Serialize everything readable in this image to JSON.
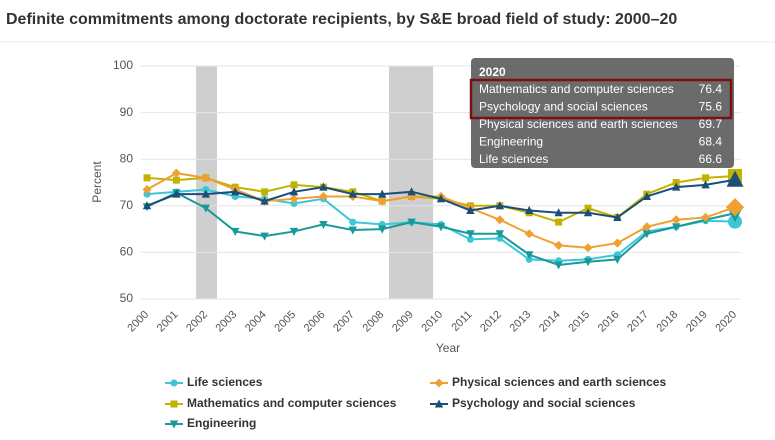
{
  "chart_data": {
    "type": "line",
    "title": "Definite commitments among doctorate recipients, by S&E broad field of study: 2000–20",
    "x": [
      "2000",
      "2001",
      "2002",
      "2003",
      "2004",
      "2005",
      "2006",
      "2007",
      "2008",
      "2009",
      "2010",
      "2011",
      "2012",
      "2013",
      "2014",
      "2015",
      "2016",
      "2017",
      "2018",
      "2019",
      "2020"
    ],
    "xlabel": "Year",
    "ylabel": "Percent",
    "ylim": [
      50,
      100
    ],
    "yticks": [
      50,
      60,
      70,
      80,
      90,
      100
    ],
    "grid": true,
    "shaded_periods": [
      [
        2001.67,
        2002.38
      ],
      [
        2008.23,
        2009.73
      ]
    ],
    "series": [
      {
        "name": "Life sciences",
        "color": "#3cc6d6",
        "marker": "circle",
        "values": [
          72.5,
          73,
          73.5,
          72,
          71.5,
          70.5,
          71.5,
          66.5,
          66,
          66.5,
          66,
          62.8,
          63,
          58.5,
          58.2,
          58.5,
          59.5,
          64.5,
          65.5,
          66.8,
          66.6
        ]
      },
      {
        "name": "Mathematics and computer sciences",
        "color": "#c4b200",
        "marker": "square",
        "values": [
          76,
          75.5,
          76,
          74,
          73,
          74.5,
          74,
          73,
          71,
          72,
          71.5,
          70,
          70,
          68.5,
          66.5,
          69.5,
          67.5,
          72.5,
          75,
          76,
          76.4
        ]
      },
      {
        "name": "Engineering",
        "color": "#189a9a",
        "marker": "triangle-down",
        "values": [
          69.8,
          72.8,
          69.5,
          64.5,
          63.5,
          64.5,
          66,
          64.8,
          65,
          66.5,
          65.5,
          64,
          64,
          59.5,
          57.3,
          58,
          58.5,
          64,
          65.5,
          67,
          68.4
        ]
      },
      {
        "name": "Physical sciences and earth sciences",
        "color": "#f0a030",
        "marker": "diamond",
        "values": [
          73.5,
          77,
          76,
          73.5,
          71,
          71.5,
          72,
          72,
          71,
          72,
          72,
          69.5,
          67,
          64,
          61.5,
          61,
          62,
          65.5,
          67,
          67.5,
          69.7
        ]
      },
      {
        "name": "Psychology and social sciences",
        "color": "#1a4f7a",
        "marker": "triangle",
        "values": [
          70,
          72.5,
          72.5,
          73,
          71,
          73,
          74,
          72.5,
          72.5,
          73,
          71.5,
          69,
          70,
          69,
          68.5,
          68.5,
          67.5,
          72,
          74,
          74.5,
          75.6
        ]
      }
    ]
  }
}
